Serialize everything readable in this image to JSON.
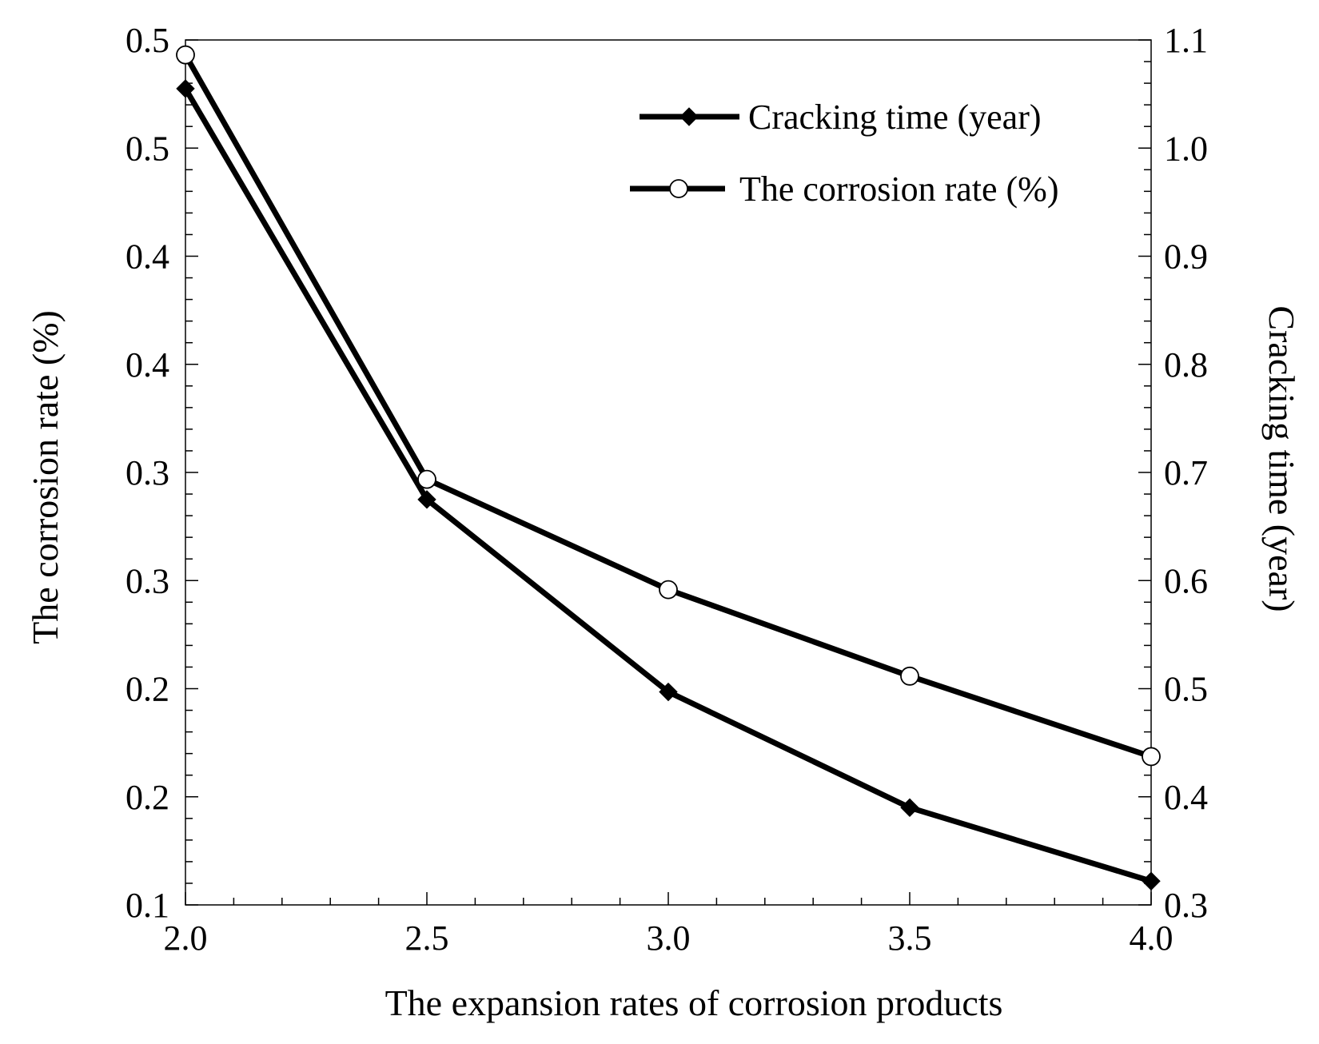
{
  "chart_data": {
    "type": "line",
    "title": "",
    "xlabel": "The expansion rates of corrosion products",
    "ylabel_left": "The corrosion rate (%)",
    "ylabel_right": "Cracking time (year)",
    "x": [
      2.0,
      2.5,
      3.0,
      3.5,
      4.0
    ],
    "x_tick_labels": [
      "2.0",
      "2.5",
      "3.0",
      "3.5",
      "4.0"
    ],
    "xlim": [
      2.0,
      4.0
    ],
    "ylim_left": [
      0.1,
      0.5
    ],
    "ylim_right": [
      0.3,
      1.1
    ],
    "left_tick_values": [
      0.1,
      0.15,
      0.2,
      0.25,
      0.3,
      0.35,
      0.4,
      0.45,
      0.5
    ],
    "left_tick_labels": [
      "0.1",
      "0.2",
      "0.2",
      "0.3",
      "0.3",
      "0.4",
      "0.4",
      "0.5",
      "0.5"
    ],
    "right_tick_values": [
      0.3,
      0.4,
      0.5,
      0.6,
      0.7,
      0.8,
      0.9,
      1.0,
      1.1
    ],
    "right_tick_labels": [
      "0.3",
      "0.4",
      "0.5",
      "0.6",
      "0.7",
      "0.8",
      "0.9",
      "1.0",
      "1.1"
    ],
    "grid": false,
    "legend_position": "top-right",
    "series": [
      {
        "name": "Cracking time (year)",
        "axis": "right",
        "marker": "filled-diamond",
        "values": [
          1.055,
          0.675,
          0.497,
          0.39,
          0.322
        ]
      },
      {
        "name": "The corrosion rate (%)",
        "axis": "left",
        "marker": "open-circle",
        "values": [
          0.4931,
          0.2968,
          0.2458,
          0.2058,
          0.1686
        ]
      }
    ],
    "colors": {
      "line": "#000000",
      "open_marker_fill": "#ffffff"
    }
  }
}
